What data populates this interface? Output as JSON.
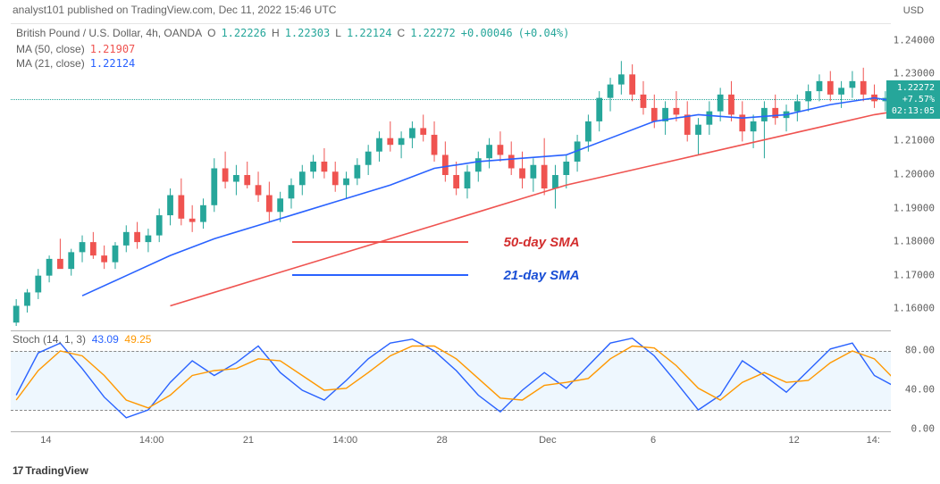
{
  "header": {
    "publish_text": "analyst101 published on TradingView.com, Dec 11, 2022 15:46 UTC"
  },
  "symbol": {
    "title": "British Pound / U.S. Dollar, 4h, OANDA",
    "ohlc": {
      "o_label": "O",
      "o": "1.22226",
      "h_label": "H",
      "h": "1.22303",
      "l_label": "L",
      "l": "1.22124",
      "c_label": "C",
      "c": "1.22272",
      "change": "+0.00046",
      "change_pct": "(+0.04%)"
    },
    "ohlc_color": "#26a69a"
  },
  "indicators": {
    "ma50": {
      "label": "MA (50, close)",
      "value": "1.21907",
      "color": "#ef5350"
    },
    "ma21": {
      "label": "MA (21, close)",
      "value": "1.22124",
      "color": "#2962ff"
    }
  },
  "price_chart": {
    "type": "candlestick-with-ma",
    "background_color": "#ffffff",
    "grid_color": "#f0f0f0",
    "up_color": "#26a69a",
    "down_color": "#ef5350",
    "ma50_color": "#ef5350",
    "ma21_color": "#2962ff",
    "line_width": 1.6,
    "ylim": [
      1.155,
      1.245
    ],
    "y_axis_title": "USD",
    "y_ticks": [
      "1.24000",
      "1.23000",
      "1.22272",
      "1.21000",
      "1.20000",
      "1.19000",
      "1.18000",
      "1.17000",
      "1.16000"
    ],
    "price_badge": {
      "price": "1.22272",
      "pct": "+7.57%",
      "countdown": "02:13:05",
      "bg": "#26a69a"
    },
    "current_price_y": 0.248,
    "candles": [
      {
        "o": 1.156,
        "h": 1.163,
        "l": 1.154,
        "c": 1.161,
        "up": true
      },
      {
        "o": 1.161,
        "h": 1.166,
        "l": 1.159,
        "c": 1.165,
        "up": true
      },
      {
        "o": 1.165,
        "h": 1.172,
        "l": 1.163,
        "c": 1.17,
        "up": true
      },
      {
        "o": 1.17,
        "h": 1.176,
        "l": 1.168,
        "c": 1.175,
        "up": true
      },
      {
        "o": 1.175,
        "h": 1.181,
        "l": 1.173,
        "c": 1.172,
        "up": false
      },
      {
        "o": 1.172,
        "h": 1.178,
        "l": 1.17,
        "c": 1.177,
        "up": true
      },
      {
        "o": 1.177,
        "h": 1.182,
        "l": 1.174,
        "c": 1.18,
        "up": true
      },
      {
        "o": 1.18,
        "h": 1.183,
        "l": 1.175,
        "c": 1.176,
        "up": false
      },
      {
        "o": 1.176,
        "h": 1.179,
        "l": 1.172,
        "c": 1.174,
        "up": false
      },
      {
        "o": 1.174,
        "h": 1.18,
        "l": 1.172,
        "c": 1.179,
        "up": true
      },
      {
        "o": 1.179,
        "h": 1.185,
        "l": 1.177,
        "c": 1.183,
        "up": true
      },
      {
        "o": 1.183,
        "h": 1.186,
        "l": 1.178,
        "c": 1.18,
        "up": false
      },
      {
        "o": 1.18,
        "h": 1.184,
        "l": 1.177,
        "c": 1.182,
        "up": true
      },
      {
        "o": 1.182,
        "h": 1.19,
        "l": 1.18,
        "c": 1.188,
        "up": true
      },
      {
        "o": 1.188,
        "h": 1.196,
        "l": 1.185,
        "c": 1.194,
        "up": true
      },
      {
        "o": 1.194,
        "h": 1.199,
        "l": 1.185,
        "c": 1.187,
        "up": false
      },
      {
        "o": 1.187,
        "h": 1.191,
        "l": 1.183,
        "c": 1.186,
        "up": false
      },
      {
        "o": 1.186,
        "h": 1.193,
        "l": 1.184,
        "c": 1.191,
        "up": true
      },
      {
        "o": 1.191,
        "h": 1.205,
        "l": 1.189,
        "c": 1.202,
        "up": true
      },
      {
        "o": 1.202,
        "h": 1.207,
        "l": 1.196,
        "c": 1.198,
        "up": false
      },
      {
        "o": 1.198,
        "h": 1.203,
        "l": 1.194,
        "c": 1.2,
        "up": true
      },
      {
        "o": 1.2,
        "h": 1.204,
        "l": 1.196,
        "c": 1.197,
        "up": false
      },
      {
        "o": 1.197,
        "h": 1.201,
        "l": 1.192,
        "c": 1.194,
        "up": false
      },
      {
        "o": 1.194,
        "h": 1.198,
        "l": 1.186,
        "c": 1.189,
        "up": false
      },
      {
        "o": 1.189,
        "h": 1.195,
        "l": 1.186,
        "c": 1.193,
        "up": true
      },
      {
        "o": 1.193,
        "h": 1.199,
        "l": 1.19,
        "c": 1.197,
        "up": true
      },
      {
        "o": 1.197,
        "h": 1.203,
        "l": 1.194,
        "c": 1.201,
        "up": true
      },
      {
        "o": 1.201,
        "h": 1.206,
        "l": 1.199,
        "c": 1.204,
        "up": true
      },
      {
        "o": 1.204,
        "h": 1.208,
        "l": 1.199,
        "c": 1.201,
        "up": false
      },
      {
        "o": 1.201,
        "h": 1.204,
        "l": 1.195,
        "c": 1.197,
        "up": false
      },
      {
        "o": 1.197,
        "h": 1.201,
        "l": 1.193,
        "c": 1.199,
        "up": true
      },
      {
        "o": 1.199,
        "h": 1.205,
        "l": 1.197,
        "c": 1.203,
        "up": true
      },
      {
        "o": 1.203,
        "h": 1.209,
        "l": 1.2,
        "c": 1.207,
        "up": true
      },
      {
        "o": 1.207,
        "h": 1.213,
        "l": 1.204,
        "c": 1.211,
        "up": true
      },
      {
        "o": 1.211,
        "h": 1.216,
        "l": 1.207,
        "c": 1.209,
        "up": false
      },
      {
        "o": 1.209,
        "h": 1.213,
        "l": 1.205,
        "c": 1.211,
        "up": true
      },
      {
        "o": 1.211,
        "h": 1.216,
        "l": 1.208,
        "c": 1.214,
        "up": true
      },
      {
        "o": 1.214,
        "h": 1.218,
        "l": 1.21,
        "c": 1.212,
        "up": false
      },
      {
        "o": 1.212,
        "h": 1.216,
        "l": 1.204,
        "c": 1.206,
        "up": false
      },
      {
        "o": 1.206,
        "h": 1.21,
        "l": 1.198,
        "c": 1.2,
        "up": false
      },
      {
        "o": 1.2,
        "h": 1.204,
        "l": 1.194,
        "c": 1.196,
        "up": false
      },
      {
        "o": 1.196,
        "h": 1.203,
        "l": 1.193,
        "c": 1.201,
        "up": true
      },
      {
        "o": 1.201,
        "h": 1.207,
        "l": 1.198,
        "c": 1.205,
        "up": true
      },
      {
        "o": 1.205,
        "h": 1.211,
        "l": 1.202,
        "c": 1.209,
        "up": true
      },
      {
        "o": 1.209,
        "h": 1.213,
        "l": 1.204,
        "c": 1.206,
        "up": false
      },
      {
        "o": 1.206,
        "h": 1.21,
        "l": 1.2,
        "c": 1.202,
        "up": false
      },
      {
        "o": 1.202,
        "h": 1.207,
        "l": 1.196,
        "c": 1.199,
        "up": false
      },
      {
        "o": 1.199,
        "h": 1.205,
        "l": 1.195,
        "c": 1.203,
        "up": true
      },
      {
        "o": 1.203,
        "h": 1.211,
        "l": 1.194,
        "c": 1.196,
        "up": false
      },
      {
        "o": 1.196,
        "h": 1.203,
        "l": 1.19,
        "c": 1.2,
        "up": true
      },
      {
        "o": 1.2,
        "h": 1.206,
        "l": 1.196,
        "c": 1.204,
        "up": true
      },
      {
        "o": 1.204,
        "h": 1.212,
        "l": 1.201,
        "c": 1.21,
        "up": true
      },
      {
        "o": 1.21,
        "h": 1.218,
        "l": 1.207,
        "c": 1.216,
        "up": true
      },
      {
        "o": 1.216,
        "h": 1.225,
        "l": 1.213,
        "c": 1.223,
        "up": true
      },
      {
        "o": 1.223,
        "h": 1.229,
        "l": 1.219,
        "c": 1.227,
        "up": true
      },
      {
        "o": 1.227,
        "h": 1.234,
        "l": 1.224,
        "c": 1.23,
        "up": true
      },
      {
        "o": 1.23,
        "h": 1.233,
        "l": 1.222,
        "c": 1.224,
        "up": false
      },
      {
        "o": 1.224,
        "h": 1.228,
        "l": 1.218,
        "c": 1.22,
        "up": false
      },
      {
        "o": 1.22,
        "h": 1.224,
        "l": 1.214,
        "c": 1.216,
        "up": false
      },
      {
        "o": 1.216,
        "h": 1.222,
        "l": 1.212,
        "c": 1.22,
        "up": true
      },
      {
        "o": 1.22,
        "h": 1.225,
        "l": 1.216,
        "c": 1.218,
        "up": false
      },
      {
        "o": 1.218,
        "h": 1.222,
        "l": 1.21,
        "c": 1.212,
        "up": false
      },
      {
        "o": 1.212,
        "h": 1.217,
        "l": 1.206,
        "c": 1.215,
        "up": true
      },
      {
        "o": 1.215,
        "h": 1.222,
        "l": 1.212,
        "c": 1.219,
        "up": true
      },
      {
        "o": 1.219,
        "h": 1.226,
        "l": 1.216,
        "c": 1.224,
        "up": true
      },
      {
        "o": 1.224,
        "h": 1.228,
        "l": 1.216,
        "c": 1.218,
        "up": false
      },
      {
        "o": 1.218,
        "h": 1.222,
        "l": 1.21,
        "c": 1.213,
        "up": false
      },
      {
        "o": 1.213,
        "h": 1.218,
        "l": 1.208,
        "c": 1.216,
        "up": true
      },
      {
        "o": 1.216,
        "h": 1.222,
        "l": 1.205,
        "c": 1.22,
        "up": true
      },
      {
        "o": 1.22,
        "h": 1.224,
        "l": 1.215,
        "c": 1.217,
        "up": false
      },
      {
        "o": 1.217,
        "h": 1.221,
        "l": 1.213,
        "c": 1.219,
        "up": true
      },
      {
        "o": 1.219,
        "h": 1.224,
        "l": 1.216,
        "c": 1.222,
        "up": true
      },
      {
        "o": 1.222,
        "h": 1.227,
        "l": 1.219,
        "c": 1.225,
        "up": true
      },
      {
        "o": 1.225,
        "h": 1.23,
        "l": 1.222,
        "c": 1.228,
        "up": true
      },
      {
        "o": 1.228,
        "h": 1.231,
        "l": 1.222,
        "c": 1.224,
        "up": false
      },
      {
        "o": 1.224,
        "h": 1.228,
        "l": 1.22,
        "c": 1.226,
        "up": true
      },
      {
        "o": 1.226,
        "h": 1.231,
        "l": 1.223,
        "c": 1.228,
        "up": true
      },
      {
        "o": 1.228,
        "h": 1.232,
        "l": 1.222,
        "c": 1.224,
        "up": false
      },
      {
        "o": 1.224,
        "h": 1.227,
        "l": 1.22,
        "c": 1.222,
        "up": false
      },
      {
        "o": 1.222,
        "h": 1.225,
        "l": 1.219,
        "c": 1.223,
        "up": true
      }
    ],
    "ma50_path": [
      [
        14,
        1.161
      ],
      [
        18,
        1.165
      ],
      [
        22,
        1.169
      ],
      [
        26,
        1.173
      ],
      [
        30,
        1.177
      ],
      [
        34,
        1.181
      ],
      [
        38,
        1.185
      ],
      [
        42,
        1.189
      ],
      [
        46,
        1.193
      ],
      [
        50,
        1.197
      ],
      [
        54,
        1.2
      ],
      [
        58,
        1.203
      ],
      [
        62,
        1.206
      ],
      [
        66,
        1.209
      ],
      [
        70,
        1.212
      ],
      [
        74,
        1.215
      ],
      [
        78,
        1.218
      ],
      [
        80,
        1.219
      ]
    ],
    "ma21_path": [
      [
        6,
        1.164
      ],
      [
        10,
        1.17
      ],
      [
        14,
        1.176
      ],
      [
        18,
        1.181
      ],
      [
        22,
        1.185
      ],
      [
        26,
        1.189
      ],
      [
        30,
        1.193
      ],
      [
        34,
        1.197
      ],
      [
        38,
        1.202
      ],
      [
        42,
        1.204
      ],
      [
        46,
        1.205
      ],
      [
        50,
        1.206
      ],
      [
        54,
        1.211
      ],
      [
        58,
        1.216
      ],
      [
        62,
        1.218
      ],
      [
        66,
        1.217
      ],
      [
        70,
        1.218
      ],
      [
        74,
        1.221
      ],
      [
        78,
        1.223
      ],
      [
        80,
        1.222
      ]
    ],
    "annotations": {
      "sma50": {
        "line_color": "#ef5350",
        "text": "50-day SMA",
        "text_color": "#d32f2f",
        "x1_pct": 32,
        "x2_pct": 52,
        "y_pct": 72,
        "label_x_pct": 56,
        "label_y_pct": 70
      },
      "sma21": {
        "line_color": "#2962ff",
        "text": "21-day SMA",
        "text_color": "#1a4fd6",
        "x1_pct": 32,
        "x2_pct": 52,
        "y_pct": 83,
        "label_x_pct": 56,
        "label_y_pct": 81
      }
    }
  },
  "stoch": {
    "label": "Stoch (14, 1, 3)",
    "k_value": "43.09",
    "k_color": "#2962ff",
    "d_value": "49.25",
    "d_color": "#ff9800",
    "ylim": [
      0,
      100
    ],
    "y_ticks": [
      "80.00",
      "40.00",
      "0.00"
    ],
    "bands": {
      "upper": 80,
      "lower": 20,
      "fill": "rgba(33,150,243,0.08)"
    },
    "k_path": [
      [
        0,
        35
      ],
      [
        2,
        78
      ],
      [
        4,
        88
      ],
      [
        6,
        62
      ],
      [
        8,
        33
      ],
      [
        10,
        12
      ],
      [
        12,
        20
      ],
      [
        14,
        48
      ],
      [
        16,
        70
      ],
      [
        18,
        55
      ],
      [
        20,
        68
      ],
      [
        22,
        85
      ],
      [
        24,
        58
      ],
      [
        26,
        40
      ],
      [
        28,
        30
      ],
      [
        30,
        50
      ],
      [
        32,
        72
      ],
      [
        34,
        88
      ],
      [
        36,
        92
      ],
      [
        38,
        80
      ],
      [
        40,
        60
      ],
      [
        42,
        35
      ],
      [
        44,
        18
      ],
      [
        46,
        40
      ],
      [
        48,
        58
      ],
      [
        50,
        42
      ],
      [
        52,
        65
      ],
      [
        54,
        88
      ],
      [
        56,
        93
      ],
      [
        58,
        75
      ],
      [
        60,
        48
      ],
      [
        62,
        20
      ],
      [
        64,
        35
      ],
      [
        66,
        70
      ],
      [
        68,
        55
      ],
      [
        70,
        38
      ],
      [
        72,
        60
      ],
      [
        74,
        82
      ],
      [
        76,
        88
      ],
      [
        78,
        55
      ],
      [
        80,
        43
      ]
    ],
    "d_path": [
      [
        0,
        30
      ],
      [
        2,
        60
      ],
      [
        4,
        80
      ],
      [
        6,
        75
      ],
      [
        8,
        55
      ],
      [
        10,
        30
      ],
      [
        12,
        22
      ],
      [
        14,
        35
      ],
      [
        16,
        55
      ],
      [
        18,
        60
      ],
      [
        20,
        62
      ],
      [
        22,
        72
      ],
      [
        24,
        70
      ],
      [
        26,
        55
      ],
      [
        28,
        40
      ],
      [
        30,
        42
      ],
      [
        32,
        58
      ],
      [
        34,
        75
      ],
      [
        36,
        85
      ],
      [
        38,
        85
      ],
      [
        40,
        72
      ],
      [
        42,
        52
      ],
      [
        44,
        32
      ],
      [
        46,
        30
      ],
      [
        48,
        45
      ],
      [
        50,
        48
      ],
      [
        52,
        52
      ],
      [
        54,
        72
      ],
      [
        56,
        85
      ],
      [
        58,
        83
      ],
      [
        60,
        65
      ],
      [
        62,
        42
      ],
      [
        64,
        30
      ],
      [
        66,
        48
      ],
      [
        68,
        58
      ],
      [
        70,
        48
      ],
      [
        72,
        50
      ],
      [
        74,
        68
      ],
      [
        76,
        80
      ],
      [
        78,
        72
      ],
      [
        80,
        49
      ]
    ]
  },
  "time_axis": {
    "ticks": [
      {
        "x_pct": 4,
        "label": "14"
      },
      {
        "x_pct": 16,
        "label": "14:00"
      },
      {
        "x_pct": 27,
        "label": "21"
      },
      {
        "x_pct": 38,
        "label": "14:00"
      },
      {
        "x_pct": 49,
        "label": "28"
      },
      {
        "x_pct": 61,
        "label": "Dec"
      },
      {
        "x_pct": 73,
        "label": "6"
      },
      {
        "x_pct": 89,
        "label": "12"
      },
      {
        "x_pct": 98,
        "label": "14:"
      }
    ]
  },
  "watermark": {
    "text": "TradingView",
    "glyph": "17"
  }
}
